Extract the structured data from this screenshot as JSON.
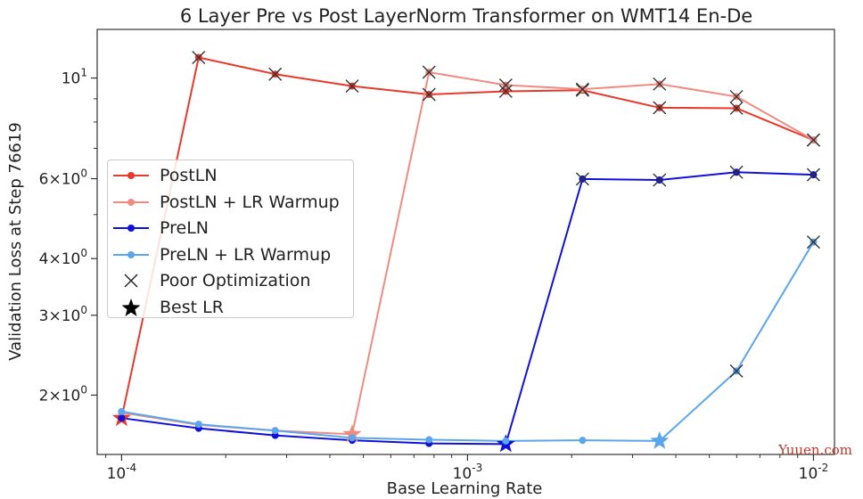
{
  "chart_data": {
    "type": "line",
    "title": "6 Layer Pre vs Post LayerNorm Transformer on WMT14 En-De",
    "xlabel": "Base Learning Rate",
    "ylabel": "Validation Loss at Step 76619",
    "xscale": "log",
    "yscale": "log",
    "xlim": [
      8.5e-05,
      0.0115
    ],
    "ylim": [
      1.48,
      12.8
    ],
    "xticks": [
      {
        "value": 0.0001,
        "label": "10^{-4}"
      },
      {
        "value": 0.001,
        "label": "10^{-3}"
      },
      {
        "value": 0.01,
        "label": "10^{-2}"
      }
    ],
    "yticks": [
      {
        "value": 10,
        "label": "10^{1}"
      },
      {
        "value": 6,
        "label": "6×10^{0}"
      },
      {
        "value": 4,
        "label": "4×10^{0}"
      },
      {
        "value": 3,
        "label": "3×10^{0}"
      },
      {
        "value": 2,
        "label": "2×10^{0}"
      }
    ],
    "grid": false,
    "legend_position": "center-left",
    "x": [
      0.0001,
      0.000167,
      0.000278,
      0.000464,
      0.000774,
      0.00129,
      0.00215,
      0.00359,
      0.00599,
      0.01
    ],
    "series": [
      {
        "name": "PostLN",
        "color": "#e8392b",
        "values": [
          1.78,
          11.1,
          10.2,
          9.6,
          9.2,
          9.35,
          9.4,
          8.6,
          8.58,
          7.3
        ],
        "poor": [
          1,
          2,
          3,
          4,
          5,
          6,
          7,
          8,
          9
        ],
        "best": 0
      },
      {
        "name": "PostLN + LR Warmup",
        "color": "#ef8b80",
        "values": [
          1.83,
          1.72,
          1.67,
          1.64,
          10.3,
          9.65,
          9.45,
          9.7,
          9.1,
          7.3
        ],
        "poor": [
          4,
          5,
          6,
          7,
          8,
          9
        ],
        "best": 3
      },
      {
        "name": "PreLN",
        "color": "#1010dd",
        "values": [
          1.78,
          1.69,
          1.63,
          1.59,
          1.565,
          1.56,
          5.99,
          5.96,
          6.2,
          6.12
        ],
        "poor": [
          6,
          7,
          8,
          9
        ],
        "best": 5
      },
      {
        "name": "PreLN + LR Warmup",
        "color": "#5aa6ee",
        "values": [
          1.84,
          1.725,
          1.67,
          1.61,
          1.595,
          1.585,
          1.59,
          1.585,
          2.26,
          4.35
        ],
        "poor": [
          8,
          9
        ],
        "best": 7
      }
    ],
    "legend": [
      {
        "label": "PostLN",
        "kind": "line",
        "color": "#e8392b"
      },
      {
        "label": "PostLN + LR Warmup",
        "kind": "line",
        "color": "#ef8b80"
      },
      {
        "label": "PreLN",
        "kind": "line",
        "color": "#1010dd"
      },
      {
        "label": "PreLN + LR Warmup",
        "kind": "line",
        "color": "#5aa6ee"
      },
      {
        "label": "Poor Optimization",
        "kind": "x-marker",
        "color": "#222222"
      },
      {
        "label": "Best LR",
        "kind": "star-marker",
        "color": "#000000"
      }
    ]
  },
  "watermark": "Yuuen.com"
}
